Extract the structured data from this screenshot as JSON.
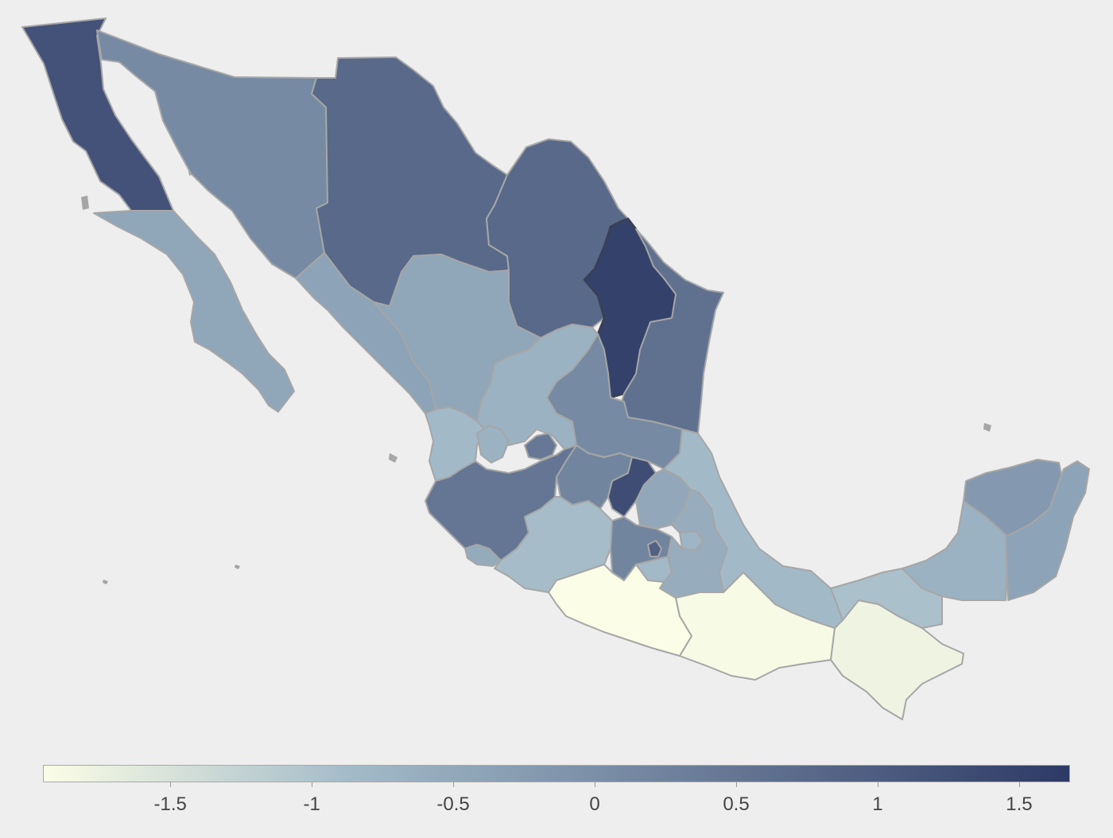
{
  "colors": {
    "background": "#eeeeee",
    "border": "#a6a6a6",
    "highlight_border": "#3a3f52",
    "scale_low": "#fbfde6",
    "scale_mid": "#a2bac8",
    "scale_high": "#2e3a66"
  },
  "map": {
    "regions": [
      {
        "id": "baja-california",
        "value": 1.2
      },
      {
        "id": "baja-california-sur",
        "value": -0.45
      },
      {
        "id": "sonora",
        "value": 0.1
      },
      {
        "id": "chihuahua",
        "value": 0.75
      },
      {
        "id": "coahuila",
        "value": 0.75
      },
      {
        "id": "nuevo-leon",
        "value": 1.55
      },
      {
        "id": "tamaulipas",
        "value": 0.6
      },
      {
        "id": "sinaloa",
        "value": -0.4
      },
      {
        "id": "durango",
        "value": -0.45
      },
      {
        "id": "zacatecas",
        "value": -0.7
      },
      {
        "id": "san-luis-potosi",
        "value": 0.1
      },
      {
        "id": "nayarit",
        "value": -0.85
      },
      {
        "id": "jalisco",
        "value": 0.5
      },
      {
        "id": "aguascalientes",
        "value": 0.45
      },
      {
        "id": "guanajuato",
        "value": 0.2
      },
      {
        "id": "queretaro",
        "value": 1.3
      },
      {
        "id": "hidalgo",
        "value": -0.5
      },
      {
        "id": "colima",
        "value": -0.55
      },
      {
        "id": "michoacan",
        "value": -0.9
      },
      {
        "id": "estado-de-mexico",
        "value": 0.2
      },
      {
        "id": "cdmx",
        "value": 0.9
      },
      {
        "id": "morelos",
        "value": -0.85
      },
      {
        "id": "tlaxcala",
        "value": -0.75
      },
      {
        "id": "puebla",
        "value": -0.6
      },
      {
        "id": "veracruz",
        "value": -0.85
      },
      {
        "id": "guerrero",
        "value": -1.95
      },
      {
        "id": "oaxaca",
        "value": -1.9
      },
      {
        "id": "chiapas",
        "value": -1.8
      },
      {
        "id": "tabasco",
        "value": -0.95
      },
      {
        "id": "campeche",
        "value": -0.7
      },
      {
        "id": "yucatan",
        "value": -0.2
      },
      {
        "id": "quintana-roo",
        "value": -0.4
      }
    ]
  },
  "colorbar": {
    "min": -1.95,
    "max": 1.68,
    "ticks": [
      {
        "label": "-1.5",
        "value": -1.5
      },
      {
        "label": "-1",
        "value": -1
      },
      {
        "label": "-0.5",
        "value": -0.5
      },
      {
        "label": "0",
        "value": 0
      },
      {
        "label": "0.5",
        "value": 0.5
      },
      {
        "label": "1",
        "value": 1
      },
      {
        "label": "1.5",
        "value": 1.5
      }
    ]
  }
}
